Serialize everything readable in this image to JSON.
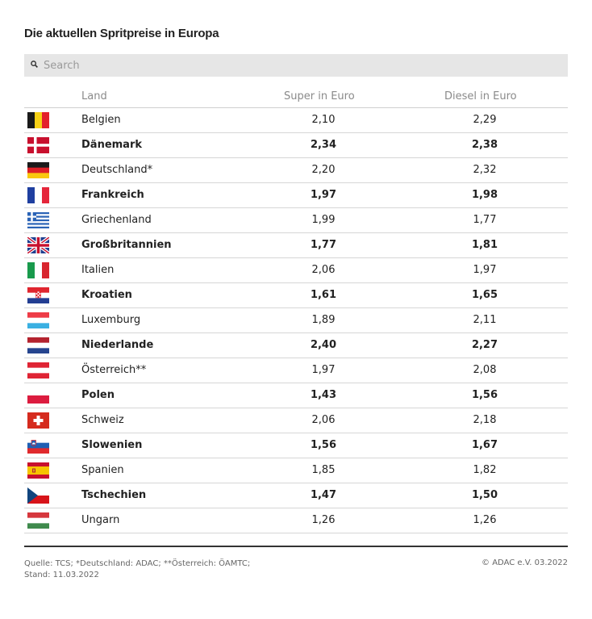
{
  "title": "Die aktuellen Spritpreise in Europa",
  "search": {
    "placeholder": "Search"
  },
  "chart_data": {
    "type": "table",
    "columns": [
      "Land",
      "Super in Euro",
      "Diesel in Euro"
    ],
    "rows": [
      {
        "flag": "flag-belgium-icon",
        "land": "Belgien",
        "super": "2,10",
        "diesel": "2,29"
      },
      {
        "flag": "flag-denmark-icon",
        "land": "Dänemark",
        "super": "2,34",
        "diesel": "2,38"
      },
      {
        "flag": "flag-germany-icon",
        "land": "Deutschland*",
        "super": "2,20",
        "diesel": "2,32"
      },
      {
        "flag": "flag-france-icon",
        "land": "Frankreich",
        "super": "1,97",
        "diesel": "1,98"
      },
      {
        "flag": "flag-greece-icon",
        "land": "Griechenland",
        "super": "1,99",
        "diesel": "1,77"
      },
      {
        "flag": "flag-uk-icon",
        "land": "Großbritannien",
        "super": "1,77",
        "diesel": "1,81"
      },
      {
        "flag": "flag-italy-icon",
        "land": "Italien",
        "super": "2,06",
        "diesel": "1,97"
      },
      {
        "flag": "flag-croatia-icon",
        "land": "Kroatien",
        "super": "1,61",
        "diesel": "1,65"
      },
      {
        "flag": "flag-luxembourg-icon",
        "land": "Luxemburg",
        "super": "1,89",
        "diesel": "2,11"
      },
      {
        "flag": "flag-netherlands-icon",
        "land": "Niederlande",
        "super": "2,40",
        "diesel": "2,27"
      },
      {
        "flag": "flag-austria-icon",
        "land": "Österreich**",
        "super": "1,97",
        "diesel": "2,08"
      },
      {
        "flag": "flag-poland-icon",
        "land": "Polen",
        "super": "1,43",
        "diesel": "1,56"
      },
      {
        "flag": "flag-switzerland-icon",
        "land": "Schweiz",
        "super": "2,06",
        "diesel": "2,18"
      },
      {
        "flag": "flag-slovenia-icon",
        "land": "Slowenien",
        "super": "1,56",
        "diesel": "1,67"
      },
      {
        "flag": "flag-spain-icon",
        "land": "Spanien",
        "super": "1,85",
        "diesel": "1,82"
      },
      {
        "flag": "flag-czech-icon",
        "land": "Tschechien",
        "super": "1,47",
        "diesel": "1,50"
      },
      {
        "flag": "flag-hungary-icon",
        "land": "Ungarn",
        "super": "1,26",
        "diesel": "1,26"
      }
    ]
  },
  "footer": {
    "source_line1": "Quelle: TCS; *Deutschland: ADAC; **Österreich: ÖAMTC;",
    "source_line2": "Stand: 11.03.2022",
    "copyright": "© ADAC e.V. 03.2022"
  }
}
